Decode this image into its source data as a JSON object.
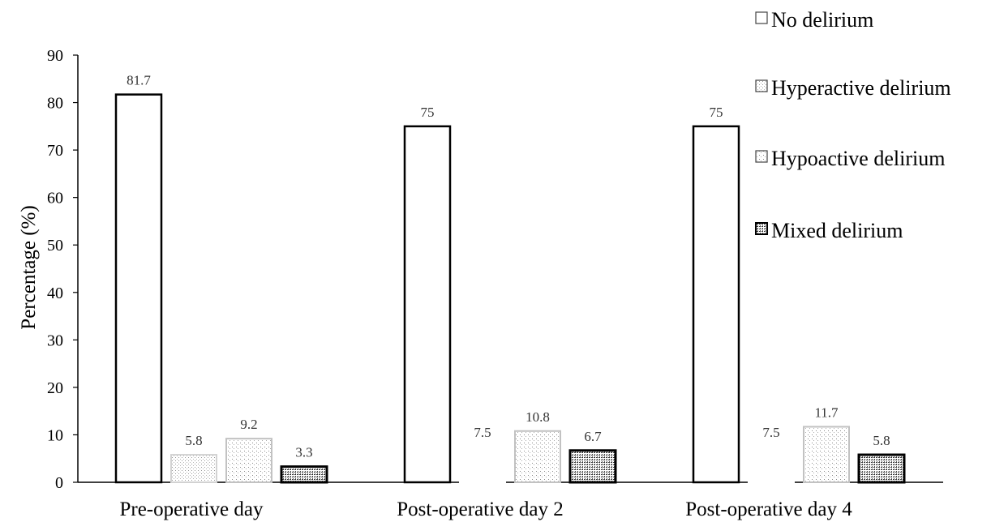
{
  "chart_data": {
    "type": "bar",
    "categories": [
      "Pre-operative day",
      "Post-operative day 2",
      "Post-operative day 4"
    ],
    "series": [
      {
        "name": "No delirium",
        "values": [
          81.7,
          75,
          75
        ],
        "labels": [
          "81.7",
          "75",
          "75"
        ]
      },
      {
        "name": "Hyperactive delirium",
        "values": [
          5.8,
          7.5,
          7.5
        ],
        "labels": [
          "5.8",
          "7.5",
          "7.5"
        ]
      },
      {
        "name": "Hypoactive delirium",
        "values": [
          9.2,
          10.8,
          11.7
        ],
        "labels": [
          "9.2",
          "10.8",
          "11.7"
        ]
      },
      {
        "name": "Mixed delirium",
        "values": [
          3.3,
          6.7,
          5.8
        ],
        "labels": [
          "3.3",
          "6.7",
          "5.8"
        ]
      }
    ],
    "ylabel": "Percentage (%)",
    "xlabel": "",
    "ylim": [
      0,
      90
    ],
    "yticks": [
      0,
      10,
      20,
      30,
      40,
      50,
      60,
      70,
      80,
      90
    ],
    "grid": false,
    "legend_position": "top-right"
  }
}
